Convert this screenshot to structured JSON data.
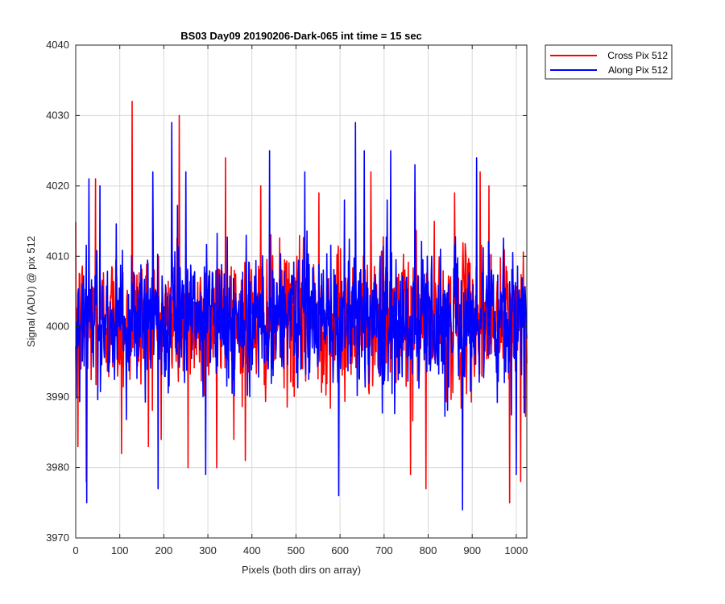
{
  "chart_data": {
    "type": "line",
    "title": "BS03 Day09 20190206-Dark-065 int time = 15 sec",
    "xlabel": "Pixels (both dirs on array)",
    "ylabel": "Signal (ADU) @ pix 512",
    "xlim": [
      0,
      1024
    ],
    "ylim": [
      3970,
      4040
    ],
    "xticks": [
      0,
      100,
      200,
      300,
      400,
      500,
      600,
      700,
      800,
      900,
      1000
    ],
    "yticks": [
      3970,
      3980,
      3990,
      4000,
      4010,
      4020,
      4030,
      4040
    ],
    "grid": true,
    "legend_position": "outside-top-right",
    "series": [
      {
        "name": "Cross Pix 512",
        "color": "#ff0000",
        "mean": 4001,
        "spread": 5,
        "highlights": [
          {
            "x": 5,
            "y": 3983
          },
          {
            "x": 24,
            "y": 3978
          },
          {
            "x": 45,
            "y": 4021
          },
          {
            "x": 104,
            "y": 3982
          },
          {
            "x": 128,
            "y": 4032
          },
          {
            "x": 165,
            "y": 3983
          },
          {
            "x": 235,
            "y": 4030
          },
          {
            "x": 255,
            "y": 3980
          },
          {
            "x": 320,
            "y": 3980
          },
          {
            "x": 340,
            "y": 4024
          },
          {
            "x": 385,
            "y": 3981
          },
          {
            "x": 420,
            "y": 4020
          },
          {
            "x": 552,
            "y": 4019
          },
          {
            "x": 670,
            "y": 4022
          },
          {
            "x": 760,
            "y": 3979
          },
          {
            "x": 770,
            "y": 4019
          },
          {
            "x": 795,
            "y": 3977
          },
          {
            "x": 860,
            "y": 4019
          },
          {
            "x": 918,
            "y": 4022
          },
          {
            "x": 938,
            "y": 4020
          },
          {
            "x": 985,
            "y": 3975
          },
          {
            "x": 1010,
            "y": 3978
          }
        ]
      },
      {
        "name": "Along Pix 512",
        "color": "#0000ff",
        "mean": 4001,
        "spread": 5,
        "highlights": [
          {
            "x": 25,
            "y": 3975
          },
          {
            "x": 30,
            "y": 4021
          },
          {
            "x": 55,
            "y": 4020
          },
          {
            "x": 175,
            "y": 4022
          },
          {
            "x": 187,
            "y": 3977
          },
          {
            "x": 218,
            "y": 4029
          },
          {
            "x": 250,
            "y": 4022
          },
          {
            "x": 295,
            "y": 3979
          },
          {
            "x": 440,
            "y": 4025
          },
          {
            "x": 520,
            "y": 4022
          },
          {
            "x": 597,
            "y": 3976
          },
          {
            "x": 635,
            "y": 4029
          },
          {
            "x": 655,
            "y": 4025
          },
          {
            "x": 715,
            "y": 4025
          },
          {
            "x": 770,
            "y": 4023
          },
          {
            "x": 878,
            "y": 3974
          },
          {
            "x": 910,
            "y": 4024
          },
          {
            "x": 1000,
            "y": 3979
          }
        ]
      }
    ]
  }
}
